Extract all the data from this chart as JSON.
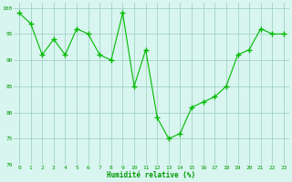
{
  "x": [
    0,
    1,
    2,
    3,
    4,
    5,
    6,
    7,
    8,
    9,
    10,
    11,
    12,
    13,
    14,
    15,
    16,
    17,
    18,
    19,
    20,
    21,
    22,
    23
  ],
  "y": [
    99,
    97,
    91,
    94,
    91,
    96,
    95,
    91,
    90,
    99,
    85,
    92,
    79,
    75,
    76,
    81,
    82,
    83,
    85,
    91,
    92,
    96,
    95,
    95
  ],
  "line_color": "#00bb00",
  "marker_color": "#00bb00",
  "bg_color": "#d8f5f0",
  "grid_color": "#99ccbb",
  "xlabel": "Humidité relative (%)",
  "xlabel_color": "#009900",
  "tick_color": "#009900",
  "ylim": [
    70,
    101
  ],
  "xlim": [
    -0.5,
    23.5
  ],
  "yticks": [
    70,
    75,
    80,
    85,
    90,
    95,
    100
  ],
  "xticks": [
    0,
    1,
    2,
    3,
    4,
    5,
    6,
    7,
    8,
    9,
    10,
    11,
    12,
    13,
    14,
    15,
    16,
    17,
    18,
    19,
    20,
    21,
    22,
    23
  ]
}
